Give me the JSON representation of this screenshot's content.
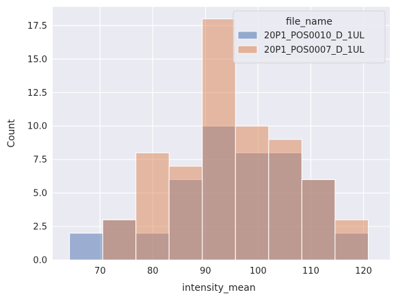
{
  "chart_data": {
    "type": "bar",
    "subtype": "histogram-overlay",
    "xlabel": "intensity_mean",
    "ylabel": "Count",
    "xlim": [
      61,
      125
    ],
    "ylim": [
      0,
      18.9
    ],
    "xticks": [
      70,
      80,
      90,
      100,
      110,
      120
    ],
    "yticks": [
      0.0,
      2.5,
      5.0,
      7.5,
      10.0,
      12.5,
      15.0,
      17.5
    ],
    "ytick_labels": [
      "0.0",
      "2.5",
      "5.0",
      "7.5",
      "10.0",
      "12.5",
      "15.0",
      "17.5"
    ],
    "grid": true,
    "background": "#eaeaf2",
    "bin_edges": [
      64.2,
      70.5,
      76.8,
      83.1,
      89.4,
      95.7,
      102.0,
      108.3,
      114.6,
      120.9,
      127.2
    ],
    "legend": {
      "title": "file_name",
      "placement": "top-right"
    },
    "series": [
      {
        "name": "20P1_POS0010_D_1UL",
        "color": "#4c72b0",
        "values": [
          2,
          3,
          2,
          6,
          10,
          8,
          8,
          6,
          2,
          0
        ]
      },
      {
        "name": "20P1_POS0007_D_1UL",
        "color": "#dd8452",
        "values": [
          0,
          3,
          8,
          7,
          18,
          10,
          9,
          6,
          3,
          0
        ]
      }
    ]
  }
}
